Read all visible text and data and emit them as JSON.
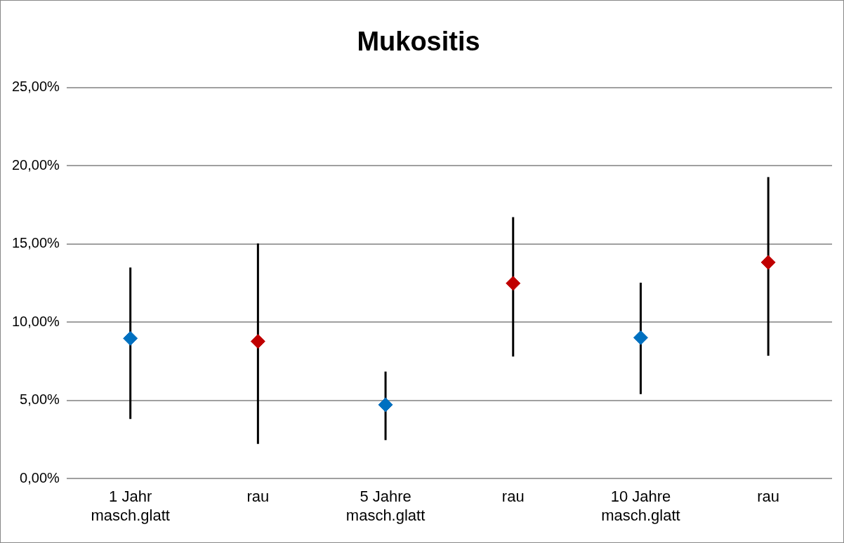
{
  "chart_data": {
    "type": "scatter",
    "title": "Mukositis",
    "categories": [
      "1 Jahr\nmasch.glatt",
      "rau",
      "5 Jahre\nmasch.glatt",
      "rau",
      "10 Jahre\nmasch.glatt",
      "rau"
    ],
    "values": [
      8.96,
      8.77,
      4.72,
      12.48,
      9.01,
      13.82
    ],
    "colors": [
      "#0070c0",
      "#c00000",
      "#0070c0",
      "#c00000",
      "#0070c0",
      "#c00000"
    ],
    "errors": [
      [
        3.81,
        13.49
      ],
      [
        2.22,
        15.03
      ],
      [
        2.46,
        6.84
      ],
      [
        7.8,
        16.71
      ],
      [
        5.4,
        12.52
      ],
      [
        7.85,
        19.27
      ]
    ],
    "ylim": [
      0,
      25
    ],
    "yticks": [
      {
        "value": 0,
        "label": "0,00%"
      },
      {
        "value": 5,
        "label": "5,00%"
      },
      {
        "value": 10,
        "label": "10,00%"
      },
      {
        "value": 15,
        "label": "15,00%"
      },
      {
        "value": 20,
        "label": "20,00%"
      },
      {
        "value": 25,
        "label": "25,00%"
      }
    ],
    "grid": "y",
    "legend": false,
    "marker": "diamond"
  }
}
